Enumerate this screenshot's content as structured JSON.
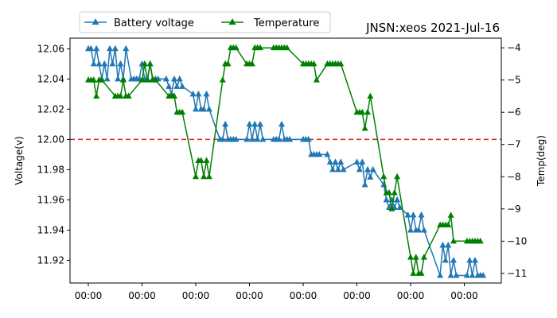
{
  "chart_data": {
    "type": "line",
    "title": "JNSN:xeos 2021-Jul-16",
    "xlabel": "",
    "ylabel": "Voltage(v)",
    "y2label": "Temp(deg)",
    "x_tick_labels": [
      "00:00",
      "00:00",
      "00:00",
      "00:00",
      "00:00",
      "00:00",
      "00:00",
      "00:00"
    ],
    "ylim": [
      11.905,
      12.067
    ],
    "yticks": [
      12.06,
      12.04,
      12.02,
      12.0,
      11.98,
      11.96,
      11.94,
      11.92
    ],
    "ytick_labels": [
      "12.06",
      "12.04",
      "12.02",
      "12.00",
      "11.98",
      "11.96",
      "11.94",
      "11.92"
    ],
    "y2lim": [
      -11.3,
      -3.7
    ],
    "y2ticks": [
      -4,
      -5,
      -6,
      -7,
      -8,
      -9,
      -10,
      -11
    ],
    "y2tick_labels": [
      "−4",
      "−5",
      "−6",
      "−7",
      "−8",
      "−9",
      "−10",
      "−11"
    ],
    "threshold": {
      "value": 12.0,
      "axis": "left",
      "color": "#d62728",
      "style": "dashed"
    },
    "legend": {
      "placement": "top-left",
      "entries": [
        "Battery voltage",
        "Temperature"
      ]
    },
    "grid": false,
    "series": [
      {
        "name": "Battery voltage",
        "axis": "left",
        "color": "#1f77b4",
        "marker": "triangle",
        "x": [
          0.0,
          0.05,
          0.1,
          0.15,
          0.2,
          0.25,
          0.3,
          0.35,
          0.4,
          0.45,
          0.5,
          0.55,
          0.6,
          0.65,
          0.7,
          0.8,
          0.85,
          0.9,
          0.95,
          1.0,
          1.05,
          1.1,
          1.15,
          1.2,
          1.25,
          1.3,
          1.45,
          1.5,
          1.55,
          1.6,
          1.65,
          1.7,
          1.75,
          1.95,
          2.0,
          2.05,
          2.1,
          2.15,
          2.2,
          2.25,
          2.45,
          2.5,
          2.55,
          2.6,
          2.65,
          2.7,
          2.75,
          2.95,
          3.0,
          3.05,
          3.1,
          3.15,
          3.2,
          3.25,
          3.45,
          3.5,
          3.55,
          3.6,
          3.65,
          3.7,
          3.75,
          4.0,
          4.05,
          4.1,
          4.15,
          4.2,
          4.25,
          4.3,
          4.45,
          4.5,
          4.55,
          4.6,
          4.65,
          4.7,
          4.75,
          5.0,
          5.05,
          5.1,
          5.15,
          5.2,
          5.25,
          5.3,
          5.5,
          5.55,
          5.6,
          5.65,
          5.7,
          5.75,
          5.8,
          5.95,
          6.0,
          6.05,
          6.1,
          6.15,
          6.2,
          6.25,
          6.55,
          6.6,
          6.65,
          6.7,
          6.75,
          6.8,
          6.85,
          7.05,
          7.1,
          7.15,
          7.2,
          7.25,
          7.3,
          7.35
        ],
        "y": [
          12.06,
          12.06,
          12.05,
          12.06,
          12.05,
          12.04,
          12.05,
          12.04,
          12.06,
          12.05,
          12.06,
          12.04,
          12.05,
          12.04,
          12.06,
          12.04,
          12.04,
          12.04,
          12.04,
          12.05,
          12.04,
          12.04,
          12.05,
          12.04,
          12.04,
          12.04,
          12.04,
          12.035,
          12.03,
          12.04,
          12.035,
          12.04,
          12.035,
          12.03,
          12.02,
          12.03,
          12.02,
          12.02,
          12.03,
          12.02,
          12.0,
          12.0,
          12.01,
          12.0,
          12.0,
          12.0,
          12.0,
          12.0,
          12.01,
          12.0,
          12.01,
          12.0,
          12.01,
          12.0,
          12.0,
          12.0,
          12.0,
          12.01,
          12.0,
          12.0,
          12.0,
          12.0,
          12.0,
          12.0,
          11.99,
          11.99,
          11.99,
          11.99,
          11.99,
          11.985,
          11.98,
          11.985,
          11.98,
          11.985,
          11.98,
          11.985,
          11.98,
          11.985,
          11.97,
          11.98,
          11.975,
          11.98,
          11.97,
          11.96,
          11.955,
          11.96,
          11.955,
          11.96,
          11.955,
          11.95,
          11.94,
          11.95,
          11.94,
          11.94,
          11.95,
          11.94,
          11.91,
          11.93,
          11.92,
          11.93,
          11.91,
          11.92,
          11.91,
          11.91,
          11.92,
          11.91,
          11.92,
          11.91,
          11.91,
          11.91
        ]
      },
      {
        "name": "Temperature",
        "axis": "right",
        "color": "#008000",
        "marker": "triangle",
        "x": [
          0.0,
          0.05,
          0.1,
          0.15,
          0.2,
          0.25,
          0.5,
          0.55,
          0.6,
          0.65,
          0.7,
          0.75,
          1.0,
          1.05,
          1.1,
          1.15,
          1.2,
          1.25,
          1.5,
          1.55,
          1.6,
          1.65,
          1.7,
          1.75,
          2.0,
          2.05,
          2.1,
          2.15,
          2.2,
          2.25,
          2.5,
          2.55,
          2.6,
          2.65,
          2.7,
          2.75,
          2.95,
          3.0,
          3.05,
          3.1,
          3.15,
          3.2,
          3.45,
          3.5,
          3.55,
          3.6,
          3.65,
          3.7,
          4.0,
          4.05,
          4.1,
          4.15,
          4.2,
          4.25,
          4.45,
          4.5,
          4.55,
          4.6,
          4.65,
          4.7,
          5.0,
          5.05,
          5.1,
          5.15,
          5.2,
          5.25,
          5.5,
          5.55,
          5.6,
          5.65,
          5.7,
          5.75,
          6.0,
          6.05,
          6.1,
          6.15,
          6.2,
          6.25,
          6.55,
          6.6,
          6.65,
          6.7,
          6.75,
          6.8,
          7.05,
          7.1,
          7.15,
          7.2,
          7.25,
          7.3
        ],
        "y": [
          -5,
          -5,
          -5,
          -5.5,
          -5,
          -5,
          -5.5,
          -5.5,
          -5.5,
          -5,
          -5.5,
          -5.5,
          -5,
          -4.5,
          -5,
          -4.5,
          -5,
          -5,
          -5.5,
          -5.5,
          -5.5,
          -6,
          -6,
          -6,
          -8,
          -7.5,
          -7.5,
          -8,
          -7.5,
          -8,
          -5,
          -4.5,
          -4.5,
          -4,
          -4,
          -4,
          -4.5,
          -4.5,
          -4.5,
          -4,
          -4,
          -4,
          -4,
          -4,
          -4,
          -4,
          -4,
          -4,
          -4.5,
          -4.5,
          -4.5,
          -4.5,
          -4.5,
          -5,
          -4.5,
          -4.5,
          -4.5,
          -4.5,
          -4.5,
          -4.5,
          -6,
          -6,
          -6,
          -6.5,
          -6,
          -5.5,
          -8,
          -8.5,
          -8.5,
          -9,
          -8.5,
          -8,
          -10.5,
          -11,
          -10.5,
          -11,
          -11,
          -10.5,
          -9.5,
          -9.5,
          -9.5,
          -9.5,
          -9.2,
          -10,
          -10,
          -10,
          -10,
          -10,
          -10,
          -10
        ]
      }
    ]
  }
}
